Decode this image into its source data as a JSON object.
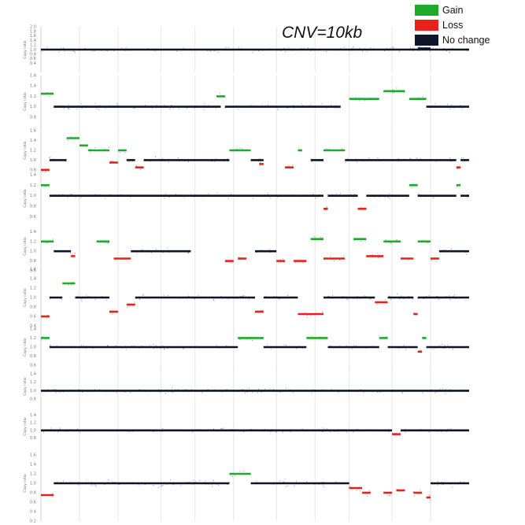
{
  "chart_data": {
    "type": "scatter",
    "title": "CNV=10kb",
    "ylabel": "Copy ratio",
    "legend": {
      "position": "top-right",
      "entries": [
        {
          "name": "Gain",
          "color": "#1faa2a"
        },
        {
          "name": "Loss",
          "color": "#e8221b"
        },
        {
          "name": "No change",
          "color": "#0d1526"
        }
      ]
    },
    "colors": {
      "gain": "#1faa2a",
      "loss": "#e8221b",
      "nochange": "#0d1526",
      "points": "#9a9a9a",
      "grid": "#d9d9d9"
    },
    "grid": true,
    "n_panels": 10,
    "panels": [
      {
        "sample": 1,
        "ylim": [
          0,
          2
        ],
        "ticks": [
          "2.0",
          "1.8",
          "1.6",
          "1.4",
          "1.2",
          "1.0",
          "0.8",
          "0.6",
          "0.4"
        ],
        "segments": [
          {
            "start": 0.0,
            "end": 1.0,
            "value": 1.0,
            "state": "nochange"
          },
          {
            "start": 0.88,
            "end": 0.91,
            "value": 1.05,
            "state": "nochange"
          }
        ]
      },
      {
        "sample": 2,
        "ylim": [
          0.6,
          1.6
        ],
        "ticks": [
          "1.6",
          "1.4",
          "1.2",
          "1.0",
          "0.8"
        ],
        "segments": [
          {
            "start": 0.0,
            "end": 0.03,
            "value": 1.25,
            "state": "gain"
          },
          {
            "start": 0.03,
            "end": 0.3,
            "value": 1.0,
            "state": "nochange"
          },
          {
            "start": 0.3,
            "end": 0.42,
            "value": 1.0,
            "state": "nochange"
          },
          {
            "start": 0.41,
            "end": 0.43,
            "value": 1.2,
            "state": "gain"
          },
          {
            "start": 0.43,
            "end": 0.7,
            "value": 1.0,
            "state": "nochange"
          },
          {
            "start": 0.72,
            "end": 0.79,
            "value": 1.15,
            "state": "gain"
          },
          {
            "start": 0.8,
            "end": 0.85,
            "value": 1.3,
            "state": "gain"
          },
          {
            "start": 0.86,
            "end": 0.9,
            "value": 1.15,
            "state": "gain"
          },
          {
            "start": 0.9,
            "end": 1.0,
            "value": 1.0,
            "state": "nochange"
          }
        ]
      },
      {
        "sample": 3,
        "ylim": [
          0.7,
          1.7
        ],
        "ticks": [
          "1.6",
          "1.4",
          "1.2",
          "1.0",
          "0.8"
        ],
        "segments": [
          {
            "start": 0.0,
            "end": 0.02,
            "value": 0.8,
            "state": "loss"
          },
          {
            "start": 0.02,
            "end": 0.06,
            "value": 1.0,
            "state": "nochange"
          },
          {
            "start": 0.06,
            "end": 0.09,
            "value": 1.45,
            "state": "gain"
          },
          {
            "start": 0.09,
            "end": 0.11,
            "value": 1.3,
            "state": "gain"
          },
          {
            "start": 0.11,
            "end": 0.16,
            "value": 1.2,
            "state": "gain"
          },
          {
            "start": 0.16,
            "end": 0.18,
            "value": 0.95,
            "state": "loss"
          },
          {
            "start": 0.18,
            "end": 0.2,
            "value": 1.2,
            "state": "gain"
          },
          {
            "start": 0.2,
            "end": 0.22,
            "value": 1.0,
            "state": "nochange"
          },
          {
            "start": 0.22,
            "end": 0.24,
            "value": 0.85,
            "state": "loss"
          },
          {
            "start": 0.24,
            "end": 0.44,
            "value": 1.0,
            "state": "nochange"
          },
          {
            "start": 0.44,
            "end": 0.49,
            "value": 1.2,
            "state": "gain"
          },
          {
            "start": 0.49,
            "end": 0.52,
            "value": 1.0,
            "state": "nochange"
          },
          {
            "start": 0.51,
            "end": 0.52,
            "value": 0.92,
            "state": "loss"
          },
          {
            "start": 0.57,
            "end": 0.59,
            "value": 0.85,
            "state": "loss"
          },
          {
            "start": 0.6,
            "end": 0.61,
            "value": 1.2,
            "state": "gain"
          },
          {
            "start": 0.63,
            "end": 0.66,
            "value": 1.0,
            "state": "nochange"
          },
          {
            "start": 0.66,
            "end": 0.71,
            "value": 1.2,
            "state": "gain"
          },
          {
            "start": 0.71,
            "end": 0.97,
            "value": 1.0,
            "state": "nochange"
          },
          {
            "start": 0.97,
            "end": 0.98,
            "value": 0.85,
            "state": "loss"
          },
          {
            "start": 0.98,
            "end": 1.0,
            "value": 1.0,
            "state": "nochange"
          }
        ]
      },
      {
        "sample": 4,
        "ylim": [
          0.5,
          1.4
        ],
        "ticks": [
          "1.4",
          "1.2",
          "1.0",
          "0.8",
          "0.6"
        ],
        "segments": [
          {
            "start": 0.0,
            "end": 0.02,
            "value": 1.2,
            "state": "gain"
          },
          {
            "start": 0.02,
            "end": 0.66,
            "value": 1.0,
            "state": "nochange"
          },
          {
            "start": 0.66,
            "end": 0.67,
            "value": 0.75,
            "state": "loss"
          },
          {
            "start": 0.67,
            "end": 0.74,
            "value": 1.0,
            "state": "nochange"
          },
          {
            "start": 0.74,
            "end": 0.76,
            "value": 0.75,
            "state": "loss"
          },
          {
            "start": 0.76,
            "end": 0.86,
            "value": 1.0,
            "state": "nochange"
          },
          {
            "start": 0.86,
            "end": 0.88,
            "value": 1.2,
            "state": "gain"
          },
          {
            "start": 0.88,
            "end": 0.97,
            "value": 1.0,
            "state": "nochange"
          },
          {
            "start": 0.97,
            "end": 0.98,
            "value": 1.2,
            "state": "gain"
          },
          {
            "start": 0.98,
            "end": 1.0,
            "value": 1.0,
            "state": "nochange"
          }
        ]
      },
      {
        "sample": 5,
        "ylim": [
          0.6,
          1.6
        ],
        "ticks": [
          "1.4",
          "1.2",
          "1.0",
          "0.8",
          "0.6"
        ],
        "segments": [
          {
            "start": 0.0,
            "end": 0.03,
            "value": 1.2,
            "state": "gain"
          },
          {
            "start": 0.03,
            "end": 0.07,
            "value": 1.0,
            "state": "nochange"
          },
          {
            "start": 0.07,
            "end": 0.08,
            "value": 0.9,
            "state": "loss"
          },
          {
            "start": 0.13,
            "end": 0.16,
            "value": 1.2,
            "state": "gain"
          },
          {
            "start": 0.17,
            "end": 0.21,
            "value": 0.85,
            "state": "loss"
          },
          {
            "start": 0.21,
            "end": 0.35,
            "value": 1.0,
            "state": "nochange"
          },
          {
            "start": 0.43,
            "end": 0.45,
            "value": 0.8,
            "state": "loss"
          },
          {
            "start": 0.46,
            "end": 0.48,
            "value": 0.85,
            "state": "loss"
          },
          {
            "start": 0.5,
            "end": 0.55,
            "value": 1.0,
            "state": "nochange"
          },
          {
            "start": 0.55,
            "end": 0.57,
            "value": 0.8,
            "state": "loss"
          },
          {
            "start": 0.59,
            "end": 0.62,
            "value": 0.8,
            "state": "loss"
          },
          {
            "start": 0.63,
            "end": 0.66,
            "value": 1.25,
            "state": "gain"
          },
          {
            "start": 0.66,
            "end": 0.71,
            "value": 0.85,
            "state": "loss"
          },
          {
            "start": 0.73,
            "end": 0.76,
            "value": 1.25,
            "state": "gain"
          },
          {
            "start": 0.76,
            "end": 0.8,
            "value": 0.9,
            "state": "loss"
          },
          {
            "start": 0.8,
            "end": 0.84,
            "value": 1.2,
            "state": "gain"
          },
          {
            "start": 0.84,
            "end": 0.87,
            "value": 0.85,
            "state": "loss"
          },
          {
            "start": 0.88,
            "end": 0.91,
            "value": 1.2,
            "state": "gain"
          },
          {
            "start": 0.91,
            "end": 0.93,
            "value": 0.85,
            "state": "loss"
          },
          {
            "start": 0.93,
            "end": 1.0,
            "value": 1.0,
            "state": "nochange"
          }
        ]
      },
      {
        "sample": 6,
        "ylim": [
          0.4,
          1.6
        ],
        "ticks": [
          "1.6",
          "1.4",
          "1.2",
          "1.0",
          "0.8",
          "0.6",
          "0.4"
        ],
        "segments": [
          {
            "start": 0.0,
            "end": 0.02,
            "value": 0.6,
            "state": "loss"
          },
          {
            "start": 0.02,
            "end": 0.05,
            "value": 1.0,
            "state": "nochange"
          },
          {
            "start": 0.05,
            "end": 0.08,
            "value": 1.3,
            "state": "gain"
          },
          {
            "start": 0.08,
            "end": 0.16,
            "value": 1.0,
            "state": "nochange"
          },
          {
            "start": 0.16,
            "end": 0.18,
            "value": 0.7,
            "state": "loss"
          },
          {
            "start": 0.2,
            "end": 0.22,
            "value": 0.85,
            "state": "loss"
          },
          {
            "start": 0.22,
            "end": 0.5,
            "value": 1.0,
            "state": "nochange"
          },
          {
            "start": 0.5,
            "end": 0.52,
            "value": 0.7,
            "state": "loss"
          },
          {
            "start": 0.52,
            "end": 0.6,
            "value": 1.0,
            "state": "nochange"
          },
          {
            "start": 0.6,
            "end": 0.66,
            "value": 0.65,
            "state": "loss"
          },
          {
            "start": 0.66,
            "end": 0.78,
            "value": 1.0,
            "state": "nochange"
          },
          {
            "start": 0.78,
            "end": 0.81,
            "value": 0.9,
            "state": "loss"
          },
          {
            "start": 0.81,
            "end": 0.87,
            "value": 1.0,
            "state": "nochange"
          },
          {
            "start": 0.87,
            "end": 0.88,
            "value": 0.65,
            "state": "loss"
          },
          {
            "start": 0.88,
            "end": 1.0,
            "value": 1.0,
            "state": "nochange"
          }
        ]
      },
      {
        "sample": 7,
        "ylim": [
          0.5,
          1.5
        ],
        "ticks": [
          "1.4",
          "1.2",
          "1.0",
          "0.8",
          "0.6"
        ],
        "segments": [
          {
            "start": 0.0,
            "end": 0.02,
            "value": 1.2,
            "state": "gain"
          },
          {
            "start": 0.02,
            "end": 0.46,
            "value": 1.0,
            "state": "nochange"
          },
          {
            "start": 0.46,
            "end": 0.52,
            "value": 1.2,
            "state": "gain"
          },
          {
            "start": 0.52,
            "end": 0.62,
            "value": 1.0,
            "state": "nochange"
          },
          {
            "start": 0.62,
            "end": 0.67,
            "value": 1.2,
            "state": "gain"
          },
          {
            "start": 0.67,
            "end": 0.79,
            "value": 1.0,
            "state": "nochange"
          },
          {
            "start": 0.79,
            "end": 0.81,
            "value": 1.2,
            "state": "gain"
          },
          {
            "start": 0.81,
            "end": 0.88,
            "value": 1.0,
            "state": "nochange"
          },
          {
            "start": 0.88,
            "end": 0.89,
            "value": 0.9,
            "state": "loss"
          },
          {
            "start": 0.89,
            "end": 0.9,
            "value": 1.2,
            "state": "gain"
          },
          {
            "start": 0.9,
            "end": 1.0,
            "value": 1.0,
            "state": "nochange"
          }
        ]
      },
      {
        "sample": 8,
        "ylim": [
          0.6,
          1.6
        ],
        "ticks": [
          "1.4",
          "1.2",
          "1.0",
          "0.8"
        ],
        "segments": [
          {
            "start": 0.0,
            "end": 1.0,
            "value": 1.0,
            "state": "nochange"
          }
        ]
      },
      {
        "sample": 9,
        "ylim": [
          0.6,
          1.6
        ],
        "ticks": [
          "1.4",
          "1.2",
          "1.0",
          "0.8"
        ],
        "segments": [
          {
            "start": 0.0,
            "end": 0.82,
            "value": 1.0,
            "state": "nochange"
          },
          {
            "start": 0.82,
            "end": 0.84,
            "value": 0.9,
            "state": "loss"
          },
          {
            "start": 0.84,
            "end": 1.0,
            "value": 1.0,
            "state": "nochange"
          }
        ]
      },
      {
        "sample": 10,
        "ylim": [
          0.2,
          1.8
        ],
        "ticks": [
          "1.6",
          "1.4",
          "1.2",
          "1.0",
          "0.8",
          "0.6",
          "0.4",
          "0.2"
        ],
        "segments": [
          {
            "start": 0.0,
            "end": 0.03,
            "value": 0.75,
            "state": "loss"
          },
          {
            "start": 0.03,
            "end": 0.44,
            "value": 1.0,
            "state": "nochange"
          },
          {
            "start": 0.44,
            "end": 0.49,
            "value": 1.2,
            "state": "gain"
          },
          {
            "start": 0.49,
            "end": 0.72,
            "value": 1.0,
            "state": "nochange"
          },
          {
            "start": 0.72,
            "end": 0.75,
            "value": 0.9,
            "state": "loss"
          },
          {
            "start": 0.75,
            "end": 0.77,
            "value": 0.8,
            "state": "loss"
          },
          {
            "start": 0.8,
            "end": 0.82,
            "value": 0.8,
            "state": "loss"
          },
          {
            "start": 0.83,
            "end": 0.85,
            "value": 0.85,
            "state": "loss"
          },
          {
            "start": 0.87,
            "end": 0.89,
            "value": 0.8,
            "state": "loss"
          },
          {
            "start": 0.9,
            "end": 0.91,
            "value": 0.7,
            "state": "loss"
          },
          {
            "start": 0.91,
            "end": 1.0,
            "value": 1.0,
            "state": "nochange"
          }
        ]
      }
    ]
  }
}
